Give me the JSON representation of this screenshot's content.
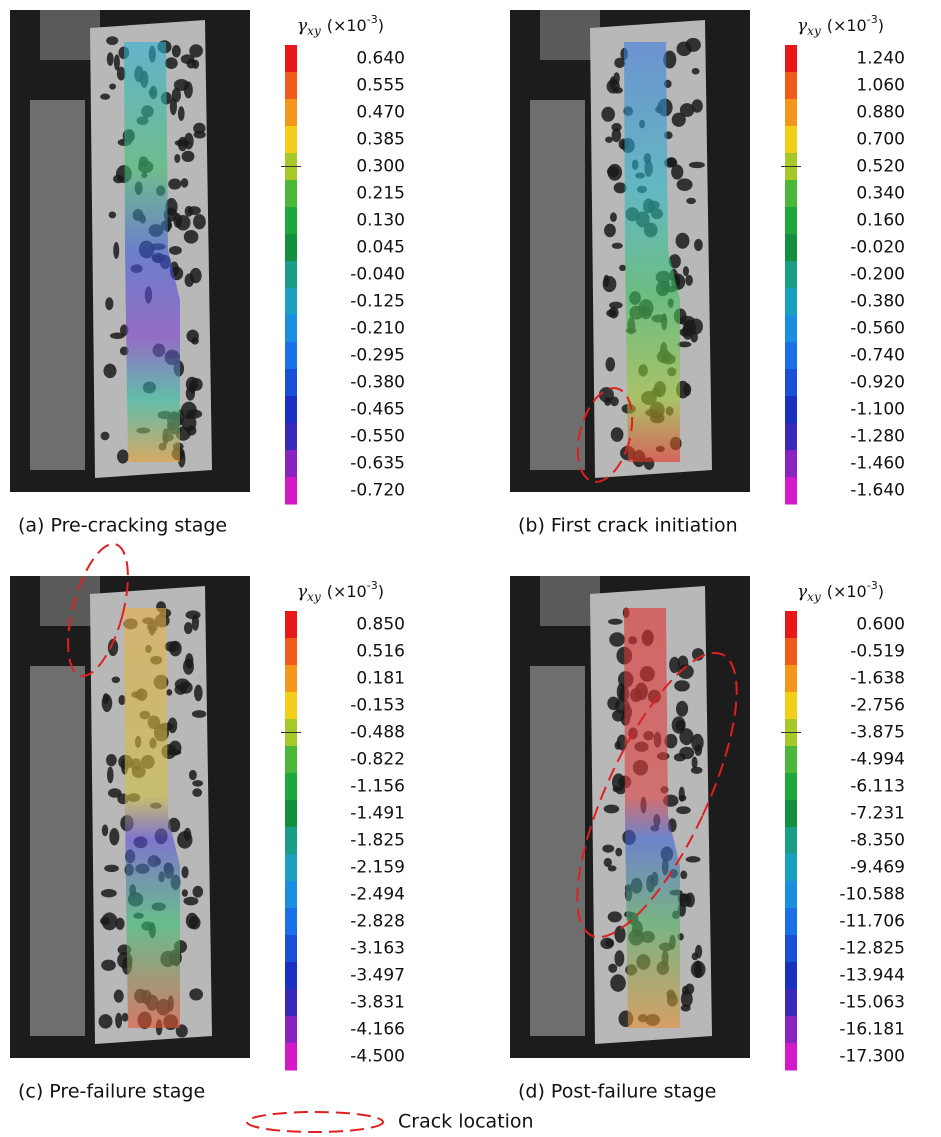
{
  "panels": [
    {
      "caption": "(a) Pre-cracking stage",
      "symbol": "γ",
      "subscript": "xy",
      "unit": "(×10",
      "exponent": "-3",
      "close": ")",
      "ticks": [
        "0.640",
        "0.555",
        "0.470",
        "0.385",
        "0.300",
        "0.215",
        "0.130",
        "0.045",
        "-0.040",
        "-0.125",
        "-0.210",
        "-0.295",
        "-0.380",
        "-0.465",
        "-0.550",
        "-0.635",
        "-0.720"
      ]
    },
    {
      "caption": "(b) First crack initiation",
      "symbol": "γ",
      "subscript": "xy",
      "unit": "(×10",
      "exponent": "-3",
      "close": ")",
      "ticks": [
        "1.240",
        "1.060",
        "0.880",
        "0.700",
        "0.520",
        "0.340",
        "0.160",
        "-0.020",
        "-0.200",
        "-0.380",
        "-0.560",
        "-0.740",
        "-0.920",
        "-1.100",
        "-1.280",
        "-1.460",
        "-1.640"
      ]
    },
    {
      "caption": "(c) Pre-failure stage",
      "symbol": "γ",
      "subscript": "xy",
      "unit": "(×10",
      "exponent": "-3",
      "close": ")",
      "ticks": [
        "0.850",
        "0.516",
        "0.181",
        "-0.153",
        "-0.488",
        "-0.822",
        "-1.156",
        "-1.491",
        "-1.825",
        "-2.159",
        "-2.494",
        "-2.828",
        "-3.163",
        "-3.497",
        "-3.831",
        "-4.166",
        "-4.500"
      ]
    },
    {
      "caption": "(d) Post-failure stage",
      "symbol": "γ",
      "subscript": "xy",
      "unit": "(×10",
      "exponent": "-3",
      "close": ")",
      "ticks": [
        "0.600",
        "-0.519",
        "-1.638",
        "-2.756",
        "-3.875",
        "-4.994",
        "-6.113",
        "-7.231",
        "-8.350",
        "-9.469",
        "-10.588",
        "-11.706",
        "-12.825",
        "-13.944",
        "-15.063",
        "-16.181",
        "-17.300"
      ]
    }
  ],
  "legend": {
    "label": "Crack location"
  }
}
